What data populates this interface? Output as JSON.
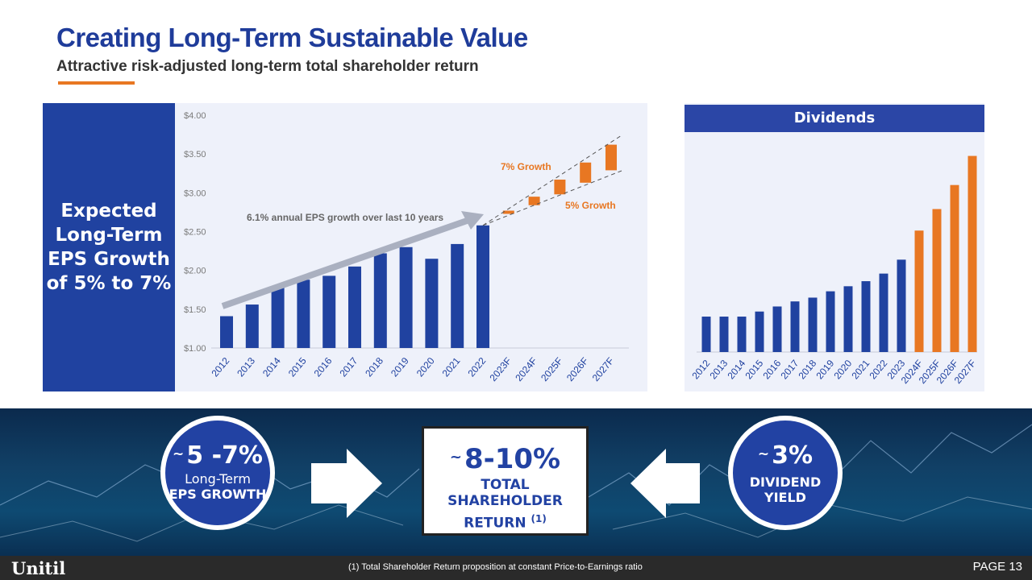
{
  "header": {
    "title": "Creating Long-Term Sustainable Value",
    "subtitle": "Attractive risk-adjusted long-term total shareholder return",
    "accent_color": "#E87722"
  },
  "eps_panel": {
    "label": "Expected\nLong-Term\nEPS Growth\nof 5% to 7%"
  },
  "dividends_panel": {
    "header": "Dividends"
  },
  "chart_data": [
    {
      "type": "bar",
      "title": "",
      "ylabel": "",
      "ylim": [
        1.0,
        4.0
      ],
      "y_ticks": [
        "$1.00",
        "$1.50",
        "$2.00",
        "$2.50",
        "$3.00",
        "$3.50",
        "$4.00"
      ],
      "categories": [
        "2012",
        "2013",
        "2014",
        "2015",
        "2016",
        "2017",
        "2018",
        "2019",
        "2020",
        "2021",
        "2022",
        "2023F",
        "2024F",
        "2025F",
        "2026F",
        "2027F"
      ],
      "series": [
        {
          "values": [
            1.41,
            1.56,
            1.78,
            1.88,
            1.93,
            2.05,
            2.22,
            2.3,
            2.15,
            2.34,
            2.58,
            null,
            null,
            null,
            null,
            null
          ],
          "color": "#2042A0"
        }
      ],
      "forecast_ranges": [
        {
          "category": "2023F",
          "low": 2.73,
          "high": 2.77
        },
        {
          "category": "2024F",
          "low": 2.84,
          "high": 2.95
        },
        {
          "category": "2025F",
          "low": 2.98,
          "high": 3.17
        },
        {
          "category": "2026F",
          "low": 3.13,
          "high": 3.39
        },
        {
          "category": "2027F",
          "low": 3.29,
          "high": 3.62
        }
      ],
      "forecast_color": "#E87722",
      "annotations": {
        "trend": "6.1% annual EPS growth over last 10 years",
        "high": "7% Growth",
        "low": "5% Growth"
      },
      "grid": false,
      "legend": "none"
    },
    {
      "type": "bar",
      "title": "Dividends",
      "categories": [
        "2012",
        "2013",
        "2014",
        "2015",
        "2016",
        "2017",
        "2018",
        "2019",
        "2020",
        "2021",
        "2022",
        "2023",
        "2024F",
        "2025F",
        "2026F",
        "2027F"
      ],
      "values": [
        1.38,
        1.38,
        1.38,
        1.42,
        1.46,
        1.5,
        1.53,
        1.58,
        1.62,
        1.66,
        1.72,
        1.83,
        2.06,
        2.23,
        2.42,
        2.65
      ],
      "forecast_from_index": 12,
      "colors": {
        "actual": "#2042A0",
        "forecast": "#E87722"
      },
      "ylim": [
        1.1,
        2.8
      ],
      "axis_labels_shown": false,
      "grid": false,
      "legend": "none"
    }
  ],
  "callouts": {
    "left": {
      "tilde": "~",
      "value": "5 -7%",
      "line1": "Long-Term",
      "line2": "EPS GROWTH"
    },
    "center": {
      "tilde": "~",
      "value": "8-10%",
      "line1": "TOTAL SHAREHOLDER",
      "line2": "RETURN",
      "sup": "(1)"
    },
    "right": {
      "tilde": "~",
      "value": "3%",
      "line1": "DIVIDEND",
      "line2": "YIELD"
    }
  },
  "footer": {
    "logo": "Unitil",
    "footnote": "(1)  Total Shareholder Return proposition at constant Price-to-Earnings ratio",
    "page": "PAGE 13"
  }
}
